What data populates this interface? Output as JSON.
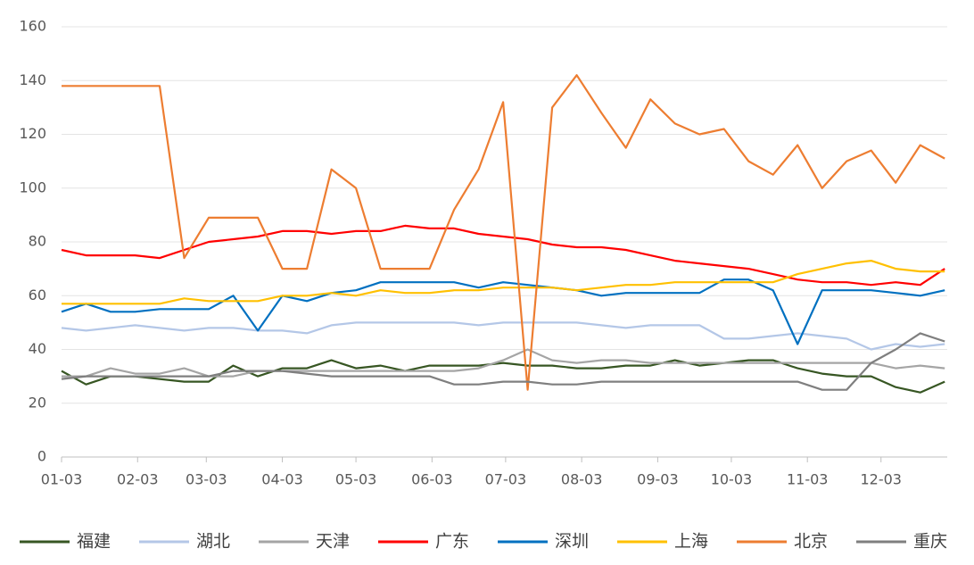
{
  "chart_data": {
    "type": "line",
    "x": [
      0,
      10,
      20,
      30,
      40,
      50,
      60,
      70,
      80,
      90,
      100,
      110,
      120,
      130,
      140,
      150,
      160,
      170,
      180,
      190,
      200,
      210,
      220,
      230,
      240,
      250,
      260,
      270,
      280,
      290,
      300,
      310,
      320,
      330,
      340,
      350,
      360
    ],
    "xlim": [
      0,
      361
    ],
    "xticks": [
      {
        "value": 0,
        "label": "01-03"
      },
      {
        "value": 31,
        "label": "02-03"
      },
      {
        "value": 59,
        "label": "03-03"
      },
      {
        "value": 90,
        "label": "04-03"
      },
      {
        "value": 120,
        "label": "05-03"
      },
      {
        "value": 151,
        "label": "06-03"
      },
      {
        "value": 181,
        "label": "07-03"
      },
      {
        "value": 212,
        "label": "08-03"
      },
      {
        "value": 243,
        "label": "09-03"
      },
      {
        "value": 273,
        "label": "10-03"
      },
      {
        "value": 304,
        "label": "11-03"
      },
      {
        "value": 334,
        "label": "12-03"
      }
    ],
    "ylim": [
      0,
      160
    ],
    "yticks": [
      0,
      20,
      40,
      60,
      80,
      100,
      120,
      140,
      160
    ],
    "grid": true,
    "legend": "bottom",
    "series": [
      {
        "name": "福建",
        "color": "#375623",
        "values": [
          32,
          27,
          30,
          30,
          29,
          28,
          28,
          34,
          30,
          33,
          33,
          36,
          33,
          34,
          32,
          34,
          34,
          34,
          35,
          34,
          34,
          33,
          33,
          34,
          34,
          36,
          34,
          35,
          36,
          36,
          33,
          31,
          30,
          30,
          26,
          24,
          28
        ]
      },
      {
        "name": "湖北",
        "color": "#b4c7e7",
        "values": [
          48,
          47,
          48,
          49,
          48,
          47,
          48,
          48,
          47,
          47,
          46,
          49,
          50,
          50,
          50,
          50,
          50,
          49,
          50,
          50,
          50,
          50,
          49,
          48,
          49,
          49,
          49,
          44,
          44,
          45,
          46,
          45,
          44,
          40,
          42,
          41,
          42
        ]
      },
      {
        "name": "天津",
        "color": "#a5a5a5",
        "values": [
          30,
          30,
          33,
          31,
          31,
          33,
          30,
          30,
          32,
          32,
          32,
          32,
          32,
          32,
          32,
          32,
          32,
          33,
          36,
          40,
          36,
          35,
          36,
          36,
          35,
          35,
          35,
          35,
          35,
          35,
          35,
          35,
          35,
          35,
          33,
          34,
          33
        ]
      },
      {
        "name": "广东",
        "color": "#ff0000",
        "values": [
          77,
          75,
          75,
          75,
          74,
          77,
          80,
          81,
          82,
          84,
          84,
          83,
          84,
          84,
          86,
          85,
          85,
          83,
          82,
          81,
          79,
          78,
          78,
          77,
          75,
          73,
          72,
          71,
          70,
          68,
          66,
          65,
          65,
          64,
          65,
          64,
          70
        ]
      },
      {
        "name": "深圳",
        "color": "#0070c0",
        "values": [
          54,
          57,
          54,
          54,
          55,
          55,
          55,
          60,
          47,
          60,
          58,
          61,
          62,
          65,
          65,
          65,
          65,
          63,
          65,
          64,
          63,
          62,
          60,
          61,
          61,
          61,
          61,
          66,
          66,
          62,
          42,
          62,
          62,
          62,
          61,
          60,
          62
        ]
      },
      {
        "name": "上海",
        "color": "#ffc000",
        "values": [
          57,
          57,
          57,
          57,
          57,
          59,
          58,
          58,
          58,
          60,
          60,
          61,
          60,
          62,
          61,
          61,
          62,
          62,
          63,
          63,
          63,
          62,
          63,
          64,
          64,
          65,
          65,
          65,
          65,
          65,
          68,
          70,
          72,
          73,
          70,
          69,
          69
        ]
      },
      {
        "name": "北京",
        "color": "#ed7d31",
        "values": [
          138,
          138,
          138,
          138,
          138,
          74,
          89,
          89,
          89,
          70,
          70,
          107,
          100,
          70,
          70,
          70,
          92,
          107,
          132,
          25,
          130,
          142,
          128,
          115,
          133,
          124,
          120,
          122,
          110,
          105,
          116,
          100,
          110,
          114,
          102,
          116,
          111
        ]
      },
      {
        "name": "重庆",
        "color": "#7f7f7f",
        "values": [
          29,
          30,
          30,
          30,
          30,
          30,
          30,
          32,
          32,
          32,
          31,
          30,
          30,
          30,
          30,
          30,
          27,
          27,
          28,
          28,
          27,
          27,
          28,
          28,
          28,
          28,
          28,
          28,
          28,
          28,
          28,
          25,
          25,
          35,
          40,
          46,
          43
        ]
      }
    ]
  }
}
